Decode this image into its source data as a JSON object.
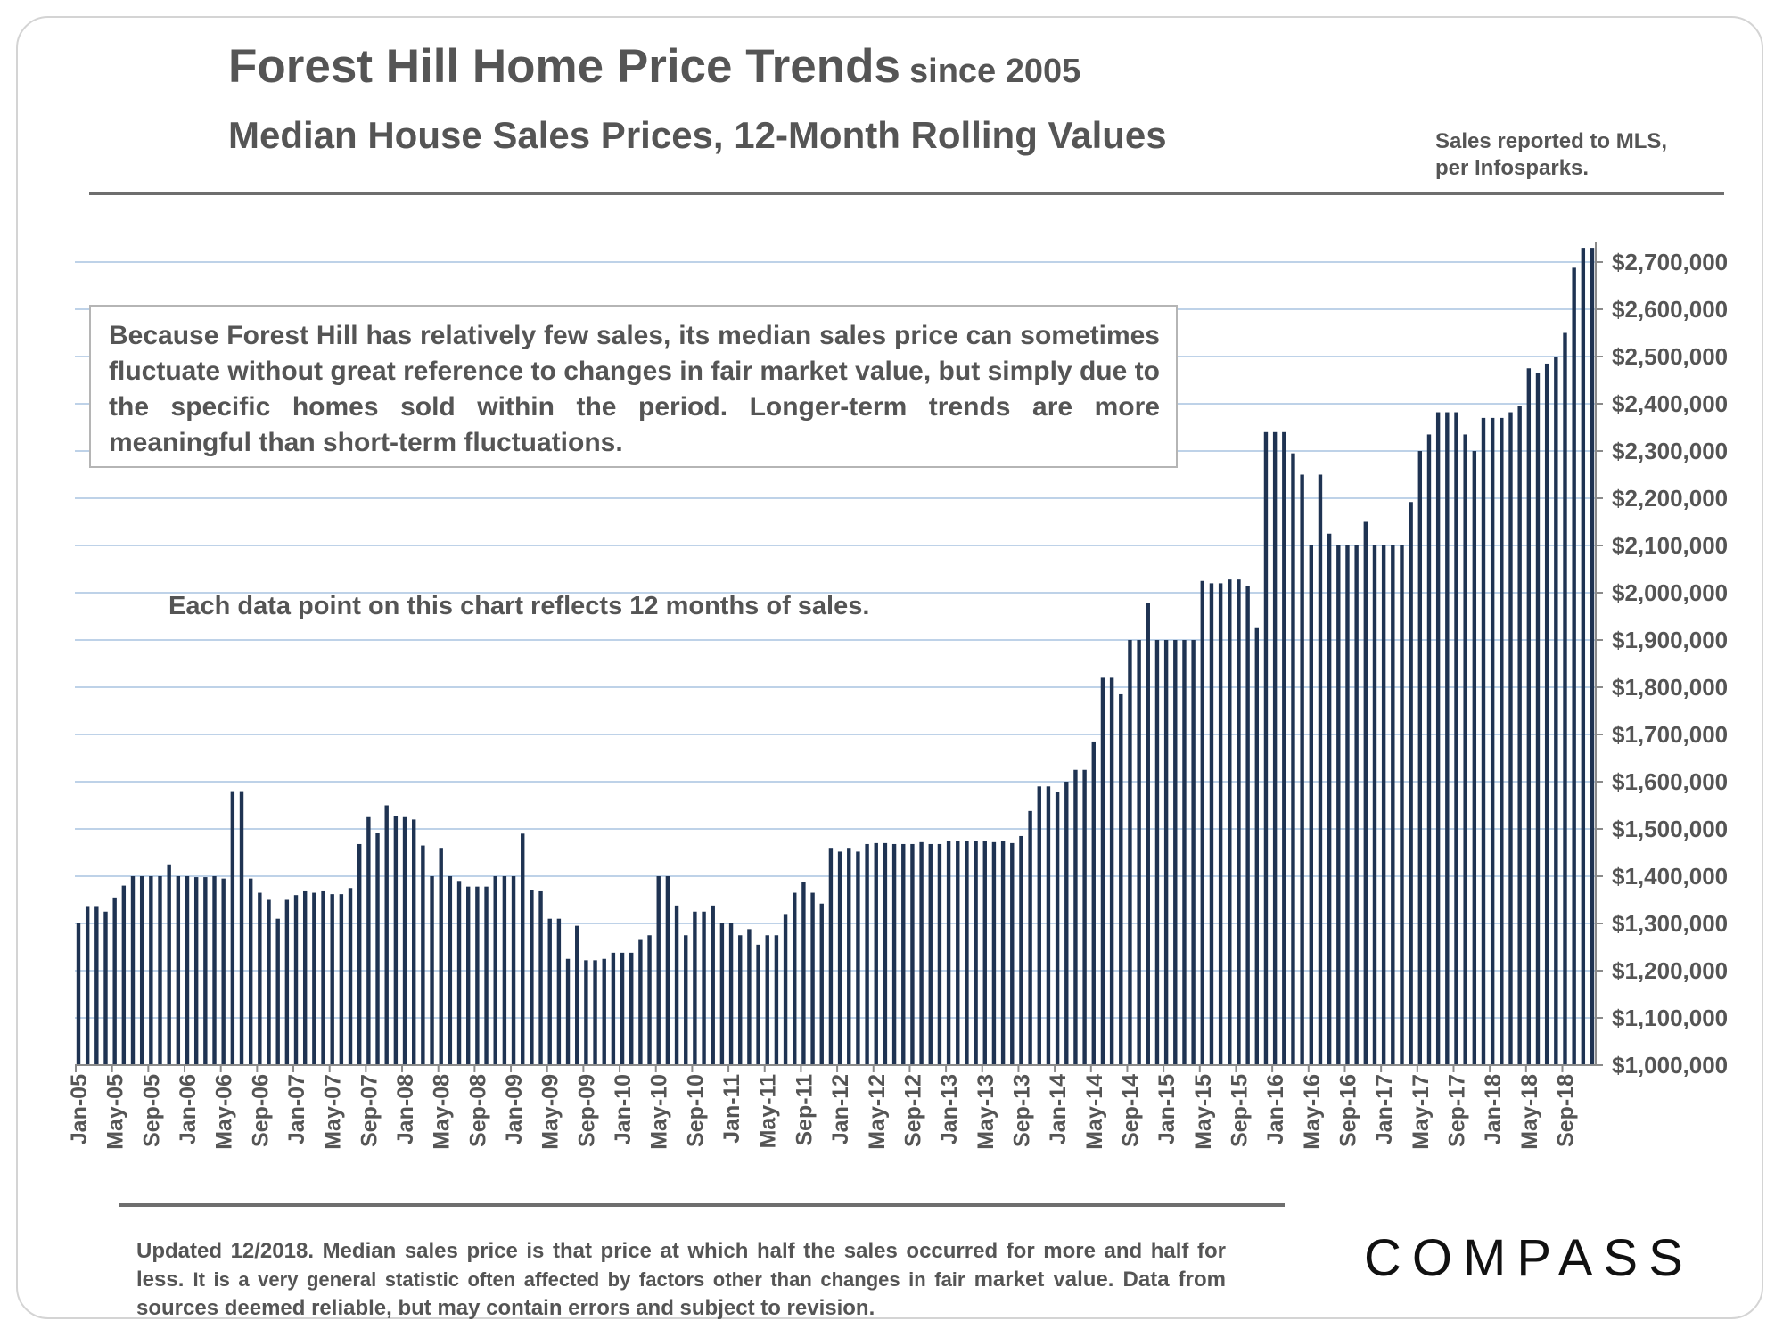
{
  "header": {
    "title": "Forest Hill Home Price Trends",
    "title_since": "since 2005",
    "subtitle": "Median House Sales Prices, 12-Month Rolling Values",
    "source_line1": "Sales reported to MLS,",
    "source_line2": "per Infosparks."
  },
  "callout": {
    "text": "Because Forest Hill has relatively few sales, its median sales price can sometimes fluctuate without great reference to changes in fair market value, but simply due to the specific homes sold within the period. Longer-term trends are more meaningful than short-term fluctuations."
  },
  "note": "Each data point on this chart reflects 12 months of sales.",
  "footer": {
    "line_bold": "Updated 12/2018. Median sales price is that price at which half the sales occurred for more and half for less.",
    "line_small": "It is a very general statistic often affected by factors other than changes in fair",
    "line_end": "market value. Data from sources deemed reliable, but may contain errors and subject to revision."
  },
  "logo": "COMPASS",
  "colors": {
    "bar": "#1f3352",
    "grid": "#a9c4e0",
    "text": "#555555"
  },
  "chart_data": {
    "type": "bar",
    "title": "Forest Hill Home Price Trends since 2005",
    "subtitle": "Median House Sales Prices, 12-Month Rolling Values",
    "xlabel": "",
    "ylabel": "",
    "ylim": [
      1000000,
      2750000
    ],
    "y_ticks": [
      1000000,
      1100000,
      1200000,
      1300000,
      1400000,
      1500000,
      1600000,
      1700000,
      1800000,
      1900000,
      2000000,
      2100000,
      2200000,
      2300000,
      2400000,
      2500000,
      2600000,
      2700000
    ],
    "y_tick_labels": [
      "$1,000,000",
      "$1,100,000",
      "$1,200,000",
      "$1,300,000",
      "$1,400,000",
      "$1,500,000",
      "$1,600,000",
      "$1,700,000",
      "$1,800,000",
      "$1,900,000",
      "$2,000,000",
      "$2,100,000",
      "$2,200,000",
      "$2,300,000",
      "$2,400,000",
      "$2,500,000",
      "$2,600,000",
      "$2,700,000"
    ],
    "x_tick_labels": [
      "Jan-05",
      "May-05",
      "Sep-05",
      "Jan-06",
      "May-06",
      "Sep-06",
      "Jan-07",
      "May-07",
      "Sep-07",
      "Jan-08",
      "May-08",
      "Sep-08",
      "Jan-09",
      "May-09",
      "Sep-09",
      "Jan-10",
      "May-10",
      "Sep-10",
      "Jan-11",
      "May-11",
      "Sep-11",
      "Jan-12",
      "May-12",
      "Sep-12",
      "Jan-13",
      "May-13",
      "Sep-13",
      "Jan-14",
      "May-14",
      "Sep-14",
      "Jan-15",
      "May-15",
      "Sep-15",
      "Jan-16",
      "May-16",
      "Sep-16",
      "Jan-17",
      "May-17",
      "Sep-17",
      "Jan-18",
      "May-18",
      "Sep-18"
    ],
    "grid": true,
    "start_month": "Jan-05",
    "months_per_bar": 1,
    "series": [
      {
        "name": "Median House Sales Price (12-month rolling)",
        "values": [
          1300000,
          1335000,
          1335000,
          1325000,
          1355000,
          1380000,
          1400000,
          1400000,
          1400000,
          1400000,
          1425000,
          1400000,
          1400000,
          1398000,
          1398000,
          1400000,
          1395000,
          1580000,
          1580000,
          1395000,
          1365000,
          1350000,
          1310000,
          1350000,
          1360000,
          1368000,
          1365000,
          1368000,
          1362000,
          1362000,
          1375000,
          1468000,
          1525000,
          1492000,
          1550000,
          1528000,
          1525000,
          1520000,
          1465000,
          1400000,
          1460000,
          1400000,
          1390000,
          1378000,
          1378000,
          1378000,
          1400000,
          1400000,
          1400000,
          1490000,
          1370000,
          1368000,
          1310000,
          1310000,
          1225000,
          1295000,
          1222000,
          1222000,
          1225000,
          1238000,
          1238000,
          1238000,
          1265000,
          1275000,
          1400000,
          1400000,
          1338000,
          1275000,
          1325000,
          1325000,
          1338000,
          1300000,
          1300000,
          1275000,
          1288000,
          1255000,
          1275000,
          1275000,
          1320000,
          1365000,
          1388000,
          1365000,
          1342000,
          1460000,
          1452000,
          1460000,
          1452000,
          1468000,
          1470000,
          1470000,
          1468000,
          1468000,
          1468000,
          1472000,
          1468000,
          1468000,
          1475000,
          1475000,
          1475000,
          1475000,
          1475000,
          1472000,
          1475000,
          1470000,
          1485000,
          1538000,
          1590000,
          1590000,
          1578000,
          1600000,
          1625000,
          1625000,
          1685000,
          1820000,
          1820000,
          1785000,
          1900000,
          1900000,
          1978000,
          1900000,
          1900000,
          1900000,
          1900000,
          1900000,
          2025000,
          2020000,
          2020000,
          2028000,
          2028000,
          2015000,
          1925000,
          2340000,
          2340000,
          2340000,
          2295000,
          2250000,
          2100000,
          2250000,
          2125000,
          2100000,
          2100000,
          2100000,
          2150000,
          2100000,
          2100000,
          2100000,
          2100000,
          2192000,
          2300000,
          2335000,
          2382000,
          2382000,
          2382000,
          2335000,
          2300000,
          2370000,
          2370000,
          2370000,
          2382000,
          2395000,
          2475000,
          2465000,
          2485000,
          2500000,
          2550000,
          2688000,
          2730000,
          2730000
        ]
      }
    ]
  }
}
